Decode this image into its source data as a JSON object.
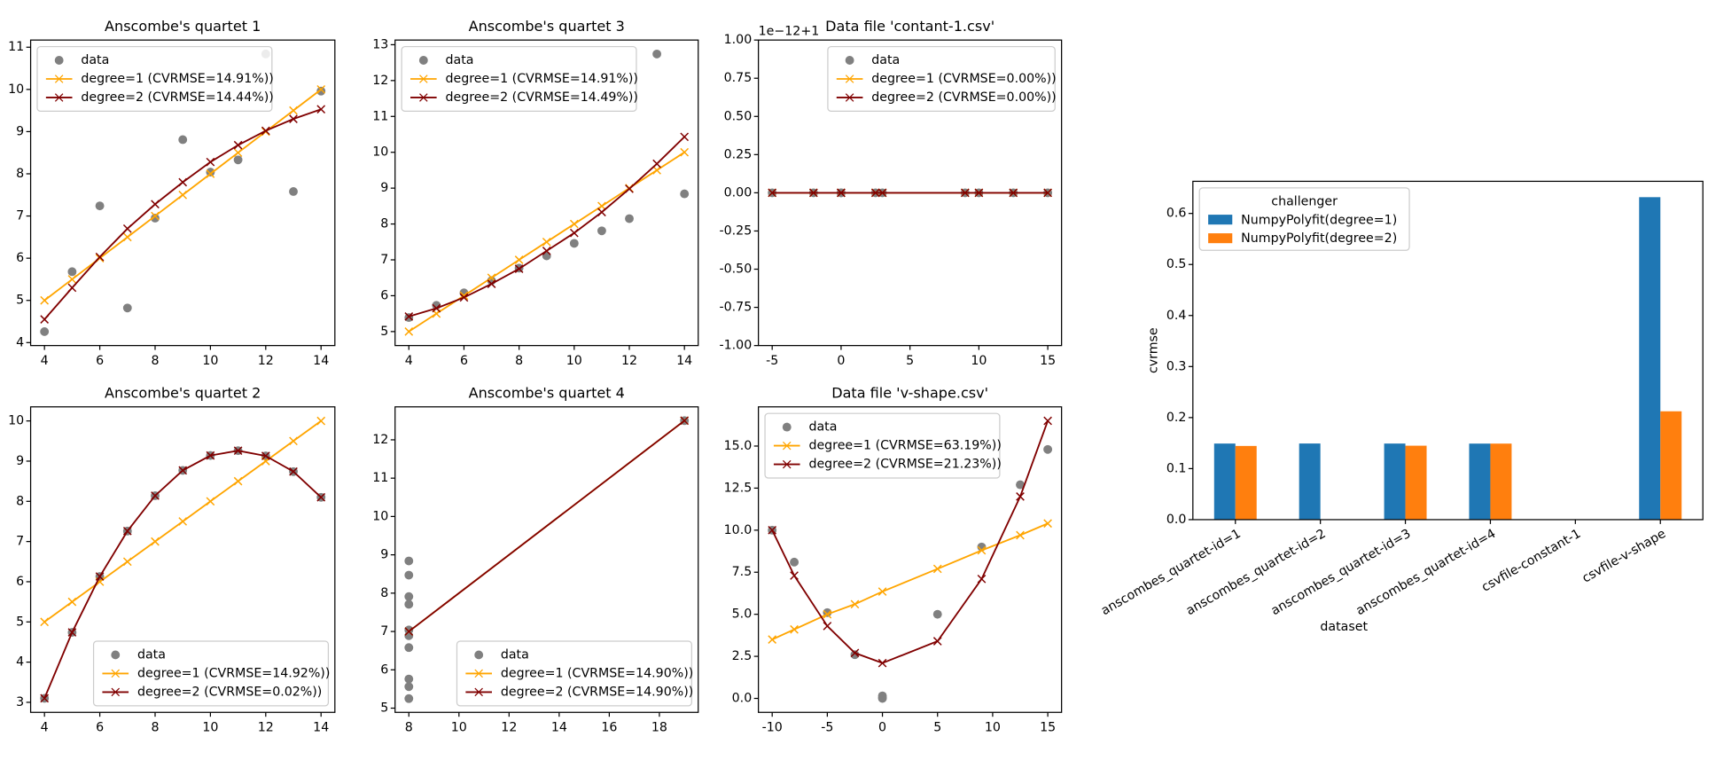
{
  "chart_data": [
    {
      "type": "line",
      "title": "Anscombe's quartet 1",
      "xlim": [
        3.5,
        14.5
      ],
      "ylim": [
        3.93,
        11.17
      ],
      "xticks": [
        4,
        6,
        8,
        10,
        12,
        14
      ],
      "yticks": [
        4,
        5,
        6,
        7,
        8,
        9,
        10,
        11
      ],
      "legend": "upper left",
      "series": [
        {
          "name": "data",
          "color": "#808080",
          "marker": "o",
          "line": false,
          "x": [
            10,
            8,
            13,
            9,
            11,
            14,
            6,
            4,
            12,
            7,
            5
          ],
          "values": [
            8.04,
            6.95,
            7.58,
            8.81,
            8.33,
            9.96,
            7.24,
            4.26,
            10.84,
            4.82,
            5.68
          ]
        },
        {
          "name": "degree=1 (CVRMSE=14.91%))",
          "color": "#ffa500",
          "marker": "x",
          "line": true,
          "x": [
            4,
            5,
            6,
            7,
            8,
            9,
            10,
            11,
            12,
            13,
            14
          ],
          "values": [
            5,
            5.5,
            6,
            6.5,
            7,
            7.5,
            8,
            8.5,
            9,
            9.5,
            10
          ]
        },
        {
          "name": "degree=2 (CVRMSE=14.44%))",
          "color": "#800000",
          "marker": "x",
          "line": true,
          "x": [
            4,
            5,
            6,
            7,
            8,
            9,
            10,
            11,
            12,
            13,
            14
          ],
          "values": [
            4.55,
            5.3,
            6.03,
            6.7,
            7.28,
            7.8,
            8.28,
            8.68,
            9.02,
            9.3,
            9.53
          ]
        }
      ]
    },
    {
      "type": "line",
      "title": "Anscombe's quartet 3",
      "xlim": [
        3.5,
        14.5
      ],
      "ylim": [
        4.61,
        13.13
      ],
      "xticks": [
        4,
        6,
        8,
        10,
        12,
        14
      ],
      "yticks": [
        5,
        6,
        7,
        8,
        9,
        10,
        11,
        12,
        13
      ],
      "legend": "upper left",
      "series": [
        {
          "name": "data",
          "color": "#808080",
          "marker": "o",
          "line": false,
          "x": [
            10,
            8,
            13,
            9,
            11,
            14,
            6,
            4,
            12,
            7,
            5
          ],
          "values": [
            7.46,
            6.77,
            12.74,
            7.11,
            7.81,
            8.84,
            6.08,
            5.39,
            8.15,
            6.42,
            5.73
          ]
        },
        {
          "name": "degree=1 (CVRMSE=14.91%))",
          "color": "#ffa500",
          "marker": "x",
          "line": true,
          "x": [
            4,
            5,
            6,
            7,
            8,
            9,
            10,
            11,
            12,
            13,
            14
          ],
          "values": [
            5,
            5.5,
            6,
            6.5,
            7,
            7.5,
            8,
            8.5,
            9,
            9.5,
            10
          ]
        },
        {
          "name": "degree=2 (CVRMSE=14.49%))",
          "color": "#800000",
          "marker": "x",
          "line": true,
          "x": [
            4,
            5,
            6,
            7,
            8,
            9,
            10,
            11,
            12,
            13,
            14
          ],
          "values": [
            5.42,
            5.65,
            5.95,
            6.33,
            6.75,
            7.25,
            7.75,
            8.33,
            8.98,
            9.68,
            10.43
          ]
        }
      ]
    },
    {
      "type": "line",
      "title": "Data file 'contant-1.csv'",
      "offset_label": "1e−12+1",
      "xlim": [
        -6,
        16
      ],
      "ylim": [
        -1,
        1
      ],
      "xticks": [
        -5,
        0,
        5,
        10,
        15
      ],
      "yticks": [
        {
          "value": -1,
          "label": "-1.00"
        },
        -0.75,
        {
          "value": -0.5,
          "label": "-0.50"
        },
        -0.25,
        {
          "value": 0,
          "label": "0.00"
        },
        0.25,
        {
          "value": 0.5,
          "label": "0.50"
        },
        0.75,
        {
          "value": 1,
          "label": "1.00"
        }
      ],
      "legend": "upper right",
      "series": [
        {
          "name": "data",
          "color": "#808080",
          "marker": "o",
          "line": false,
          "x": [
            -5,
            -2,
            0,
            0,
            2.5,
            3,
            9,
            10,
            12.5,
            15
          ],
          "values": [
            0,
            0,
            0,
            0,
            0,
            0,
            0,
            0,
            0,
            0
          ]
        },
        {
          "name": "degree=1 (CVRMSE=0.00%))",
          "color": "#ffa500",
          "marker": "x",
          "line": true,
          "x": [
            -5,
            -2,
            0,
            0,
            2.5,
            3,
            9,
            10,
            12.5,
            15
          ],
          "values": [
            0,
            0,
            0,
            0,
            0,
            0,
            0,
            0,
            0,
            0
          ]
        },
        {
          "name": "degree=2 (CVRMSE=0.00%))",
          "color": "#800000",
          "marker": "x",
          "line": true,
          "x": [
            -5,
            -2,
            0,
            0,
            2.5,
            3,
            9,
            10,
            12.5,
            15
          ],
          "values": [
            0,
            0,
            0,
            0,
            0,
            0,
            0,
            0,
            0,
            0
          ]
        }
      ]
    },
    {
      "type": "line",
      "title": "Anscombe's quartet 2",
      "xlim": [
        3.5,
        14.5
      ],
      "ylim": [
        2.75,
        10.35
      ],
      "xticks": [
        4,
        6,
        8,
        10,
        12,
        14
      ],
      "yticks": [
        3,
        4,
        5,
        6,
        7,
        8,
        9,
        10
      ],
      "legend": "lower right",
      "series": [
        {
          "name": "data",
          "color": "#808080",
          "marker": "o",
          "line": false,
          "x": [
            10,
            8,
            13,
            9,
            11,
            14,
            6,
            4,
            12,
            7,
            5
          ],
          "values": [
            9.14,
            8.14,
            8.74,
            8.77,
            9.26,
            8.1,
            6.13,
            3.1,
            9.13,
            7.26,
            4.74
          ]
        },
        {
          "name": "degree=1 (CVRMSE=14.92%))",
          "color": "#ffa500",
          "marker": "x",
          "line": true,
          "x": [
            4,
            5,
            6,
            7,
            8,
            9,
            10,
            11,
            12,
            13,
            14
          ],
          "values": [
            5,
            5.5,
            6,
            6.5,
            7,
            7.5,
            8,
            8.5,
            9,
            9.5,
            10
          ]
        },
        {
          "name": "degree=2 (CVRMSE=0.02%))",
          "color": "#800000",
          "marker": "x",
          "line": true,
          "x": [
            4,
            5,
            6,
            7,
            8,
            9,
            10,
            11,
            12,
            13,
            14
          ],
          "values": [
            3.1,
            4.74,
            6.13,
            7.26,
            8.14,
            8.77,
            9.14,
            9.26,
            9.13,
            8.74,
            8.1
          ]
        }
      ]
    },
    {
      "type": "line",
      "title": "Anscombe's quartet 4",
      "xlim": [
        7.45,
        19.55
      ],
      "ylim": [
        4.89,
        12.86
      ],
      "xticks": [
        8,
        10,
        12,
        14,
        16,
        18
      ],
      "yticks": [
        5,
        6,
        7,
        8,
        9,
        10,
        11,
        12
      ],
      "legend": "lower right",
      "series": [
        {
          "name": "data",
          "color": "#808080",
          "marker": "o",
          "line": false,
          "x": [
            8,
            8,
            8,
            8,
            8,
            8,
            8,
            19,
            8,
            8,
            8
          ],
          "values": [
            6.58,
            5.76,
            7.71,
            8.84,
            8.47,
            7.04,
            5.25,
            12.5,
            5.56,
            7.91,
            6.89
          ]
        },
        {
          "name": "degree=1 (CVRMSE=14.90%))",
          "color": "#ffa500",
          "marker": "x",
          "line": true,
          "x": [
            8,
            19
          ],
          "values": [
            7,
            12.5
          ]
        },
        {
          "name": "degree=2 (CVRMSE=14.90%))",
          "color": "#800000",
          "marker": "x",
          "line": true,
          "x": [
            8,
            19
          ],
          "values": [
            7,
            12.5
          ]
        }
      ]
    },
    {
      "type": "line",
      "title": "Data file 'v-shape.csv'",
      "xlim": [
        -11.25,
        16.25
      ],
      "ylim": [
        -0.83,
        17.33
      ],
      "xticks": [
        -10,
        -5,
        0,
        5,
        10,
        15
      ],
      "yticks": [
        {
          "value": 0,
          "label": "0.0"
        },
        2.5,
        {
          "value": 5,
          "label": "5.0"
        },
        7.5,
        {
          "value": 10,
          "label": "10.0"
        },
        12.5,
        {
          "value": 15,
          "label": "15.0"
        }
      ],
      "legend": "upper left",
      "series": [
        {
          "name": "data",
          "color": "#808080",
          "marker": "o",
          "line": false,
          "x": [
            -10,
            -8,
            -5,
            -2.5,
            0,
            0,
            0,
            5,
            9,
            12.5,
            15
          ],
          "values": [
            10,
            8.1,
            5.1,
            2.6,
            0.15,
            0.05,
            0,
            5,
            9,
            12.7,
            14.8
          ]
        },
        {
          "name": "degree=1 (CVRMSE=63.19%))",
          "color": "#ffa500",
          "marker": "x",
          "line": true,
          "x": [
            -10,
            -8,
            -5,
            -2.5,
            0,
            5,
            9,
            12.5,
            15
          ],
          "values": [
            3.5,
            4.1,
            5,
            5.6,
            6.35,
            7.7,
            8.8,
            9.7,
            10.4
          ]
        },
        {
          "name": "degree=2 (CVRMSE=21.23%))",
          "color": "#800000",
          "marker": "x",
          "line": true,
          "x": [
            -10,
            -8,
            -5,
            -2.5,
            0,
            5,
            9,
            12.5,
            15
          ],
          "values": [
            10,
            7.3,
            4.3,
            2.7,
            2.1,
            3.4,
            7.1,
            12,
            16.5
          ]
        }
      ]
    },
    {
      "type": "bar",
      "xlabel": "dataset",
      "ylabel": "cvrmse",
      "legend_title": "challenger",
      "legend": "upper left",
      "categories": [
        "anscombes_quartet-id=1",
        "anscombes_quartet-id=2",
        "anscombes_quartet-id=3",
        "anscombes_quartet-id=4",
        "csvfile-constant-1",
        "csvfile-v-shape"
      ],
      "ylim": [
        0,
        0.663
      ],
      "yticks": [
        {
          "value": 0,
          "label": "0.0"
        },
        0.1,
        0.2,
        0.3,
        0.4,
        0.5,
        0.6
      ],
      "series": [
        {
          "name": "NumpyPolyfit(degree=1)",
          "color": "#1f77b4",
          "values": [
            0.1491,
            0.1492,
            0.1491,
            0.149,
            0,
            0.6319
          ]
        },
        {
          "name": "NumpyPolyfit(degree=2)",
          "color": "#ff7f0e",
          "values": [
            0.1444,
            0.0002,
            0.1449,
            0.149,
            0,
            0.2123
          ]
        }
      ]
    }
  ]
}
